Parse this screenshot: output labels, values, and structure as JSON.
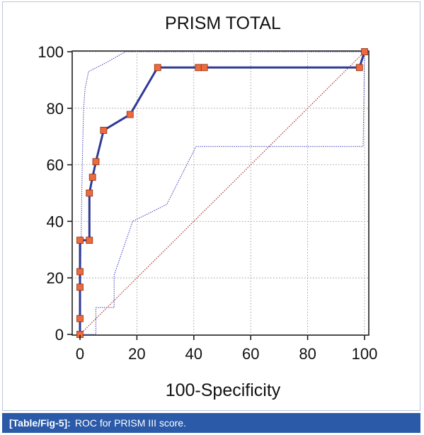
{
  "chart_data": {
    "type": "line",
    "title": "PRISM TOTAL",
    "xlabel": "100-Specificity",
    "ylabel": "",
    "xlim": [
      0,
      100
    ],
    "ylim": [
      0,
      100
    ],
    "xticks": [
      "0",
      "20",
      "40",
      "60",
      "80",
      "100"
    ],
    "yticks": [
      "0",
      "20",
      "40",
      "60",
      "80",
      "100"
    ],
    "grid": true,
    "series": [
      {
        "role": "roc-curve",
        "color": "#303a96",
        "marker_color": "#ee6a3c",
        "points": [
          [
            0,
            0
          ],
          [
            0,
            5.6
          ],
          [
            0,
            16.7
          ],
          [
            0,
            22.2
          ],
          [
            0,
            33.3
          ],
          [
            3.3,
            33.3
          ],
          [
            3.3,
            50
          ],
          [
            4.4,
            55.6
          ],
          [
            5.6,
            61.1
          ],
          [
            8.3,
            72.2
          ],
          [
            17.6,
            77.8
          ],
          [
            27.3,
            94.4
          ],
          [
            41.6,
            94.4
          ],
          [
            43.7,
            94.4
          ],
          [
            98.2,
            94.4
          ],
          [
            100,
            100
          ]
        ]
      },
      {
        "role": "confidence-upper",
        "color": "#3d3db5",
        "points": [
          [
            0,
            0
          ],
          [
            0.3,
            25
          ],
          [
            0.6,
            48
          ],
          [
            0.9,
            65
          ],
          [
            1.3,
            80
          ],
          [
            1.8,
            87
          ],
          [
            3,
            93
          ],
          [
            8,
            95.5
          ],
          [
            16,
            100
          ],
          [
            100,
            100
          ]
        ]
      },
      {
        "role": "confidence-lower",
        "color": "#3d3db5",
        "points": [
          [
            0,
            0
          ],
          [
            5.6,
            0
          ],
          [
            5.6,
            9.5
          ],
          [
            12,
            9.5
          ],
          [
            12,
            21
          ],
          [
            18.5,
            40
          ],
          [
            30.5,
            46
          ],
          [
            40.8,
            66.5
          ],
          [
            99.5,
            66.5
          ],
          [
            100,
            100
          ]
        ]
      },
      {
        "role": "diagonal-reference",
        "color": "#a0362a",
        "points": [
          [
            0,
            0
          ],
          [
            100,
            100
          ]
        ]
      }
    ]
  },
  "caption": {
    "ref": "[Table/Fig-5]:",
    "text": "ROC for PRISM III score."
  }
}
